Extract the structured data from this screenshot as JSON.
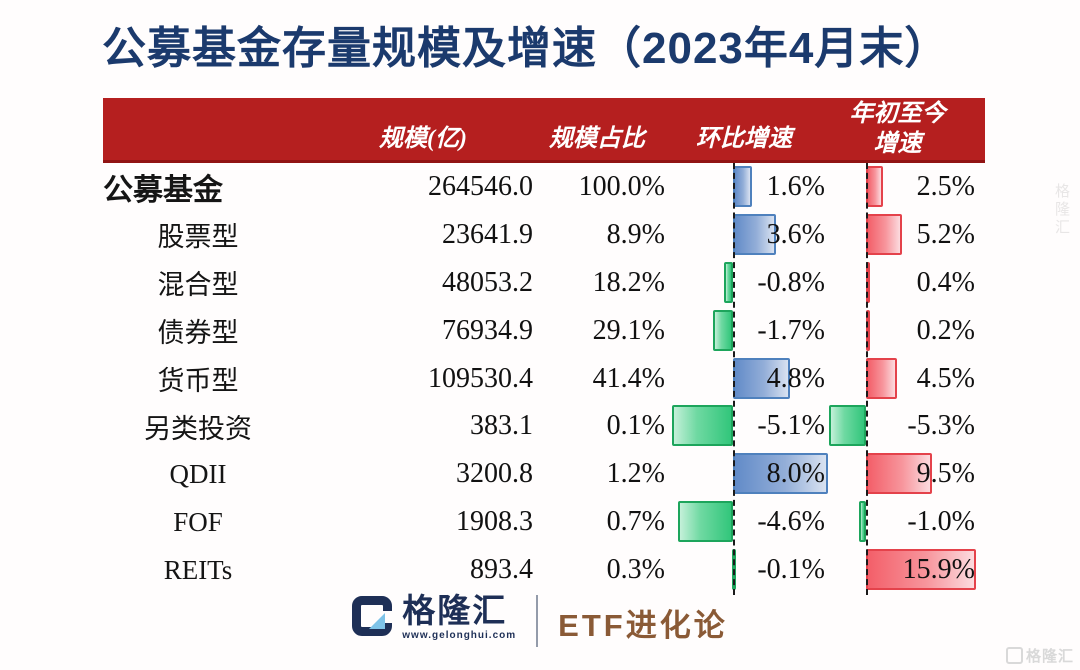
{
  "title": "公募基金存量规模及增速（2023年4月末）",
  "colors": {
    "title_navy": "#1b3a6d",
    "header_band_red": "#b51f1f",
    "bar_mom_positive_blue": "#628bc8",
    "bar_ytd_positive_red": "#f35f69",
    "bar_negative_green": "#32c67b",
    "brand_navy": "#1e2f56",
    "column_brown": "#8a5a36"
  },
  "chart_data": {
    "type": "table",
    "title": "公募基金存量规模及增速（2023年4月末）",
    "header": {
      "scale": "规模(亿)",
      "share": "规模占比",
      "mom": "环比增速",
      "ytd_line1": "年初至今",
      "ytd_line2": "增速"
    },
    "databars": {
      "mom_axis": "dashed zero-axis, positive bars blue extend right, negative bars green extend left, max_abs 8.0",
      "ytd_axis": "dashed zero-axis, positive bars red extend right, negative bars green extend left, max_abs 15.9"
    },
    "rows": [
      {
        "label": "公募基金",
        "emphasis": true,
        "scale": "264546.0",
        "share": "100.0%",
        "mom": 1.6,
        "mom_text": "1.6%",
        "ytd": 2.5,
        "ytd_text": "2.5%"
      },
      {
        "label": "股票型",
        "emphasis": false,
        "scale": "23641.9",
        "share": "8.9%",
        "mom": 3.6,
        "mom_text": "3.6%",
        "ytd": 5.2,
        "ytd_text": "5.2%"
      },
      {
        "label": "混合型",
        "emphasis": false,
        "scale": "48053.2",
        "share": "18.2%",
        "mom": -0.8,
        "mom_text": "-0.8%",
        "ytd": 0.4,
        "ytd_text": "0.4%"
      },
      {
        "label": "债券型",
        "emphasis": false,
        "scale": "76934.9",
        "share": "29.1%",
        "mom": -1.7,
        "mom_text": "-1.7%",
        "ytd": 0.2,
        "ytd_text": "0.2%"
      },
      {
        "label": "货币型",
        "emphasis": false,
        "scale": "109530.4",
        "share": "41.4%",
        "mom": 4.8,
        "mom_text": "4.8%",
        "ytd": 4.5,
        "ytd_text": "4.5%"
      },
      {
        "label": "另类投资",
        "emphasis": false,
        "scale": "383.1",
        "share": "0.1%",
        "mom": -5.1,
        "mom_text": "-5.1%",
        "ytd": -5.3,
        "ytd_text": "-5.3%"
      },
      {
        "label": "QDII",
        "emphasis": false,
        "scale": "3200.8",
        "share": "1.2%",
        "mom": 8.0,
        "mom_text": "8.0%",
        "ytd": 9.5,
        "ytd_text": "9.5%"
      },
      {
        "label": "FOF",
        "emphasis": false,
        "scale": "1908.3",
        "share": "0.7%",
        "mom": -4.6,
        "mom_text": "-4.6%",
        "ytd": -1.0,
        "ytd_text": "-1.0%"
      },
      {
        "label": "REITs",
        "emphasis": false,
        "scale": "893.4",
        "share": "0.3%",
        "mom": -0.1,
        "mom_text": "-0.1%",
        "ytd": 15.9,
        "ytd_text": "15.9%"
      }
    ]
  },
  "footer": {
    "brand": "格隆汇",
    "url": "www.gelonghui.com",
    "column": "ETF进化论"
  },
  "watermarks": {
    "side": "格隆汇",
    "corner": "格隆汇"
  }
}
